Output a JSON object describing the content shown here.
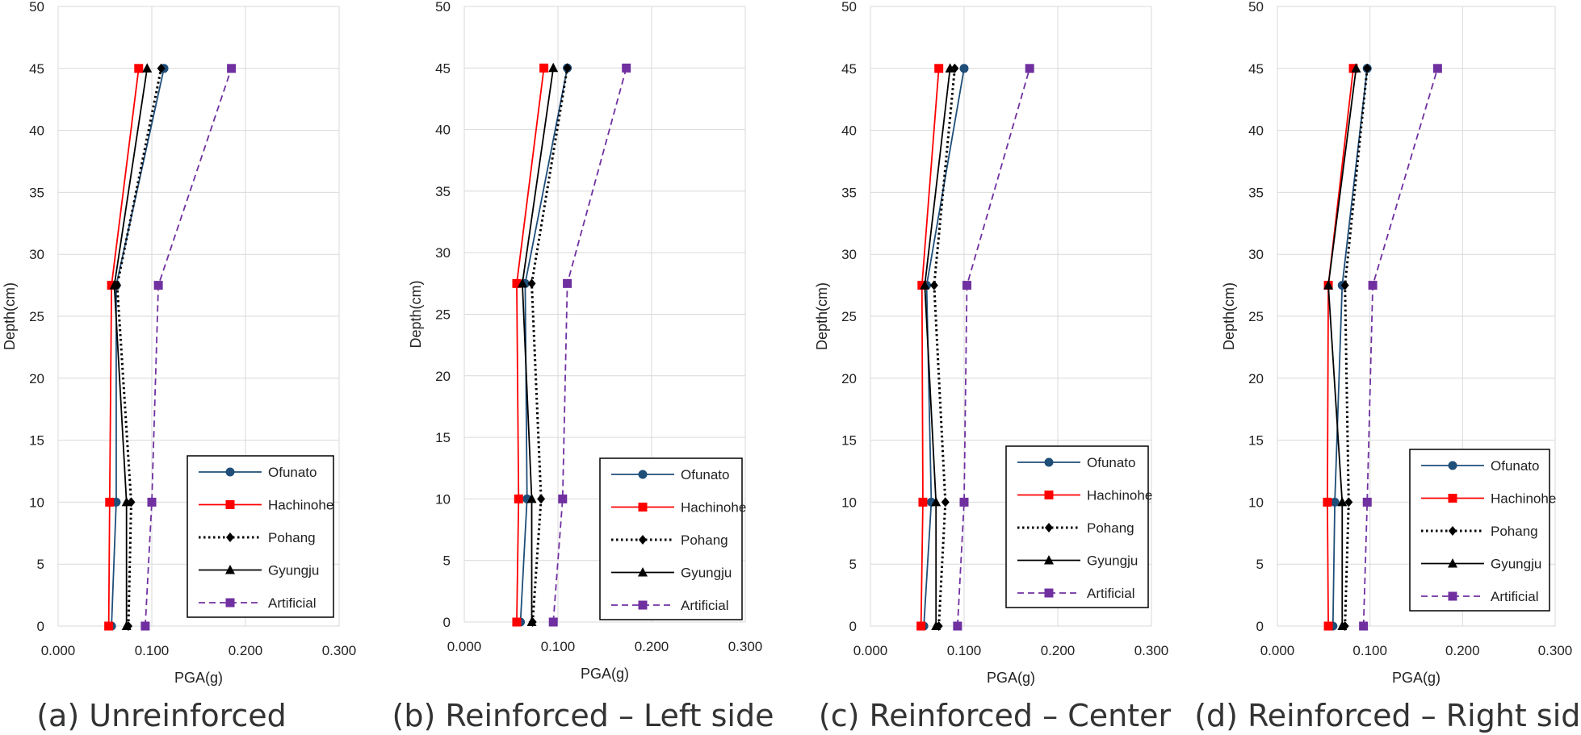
{
  "chart_data": [
    {
      "type": "line",
      "caption": "(a) Unreinforced",
      "xlabel": "PGA(g)",
      "ylabel": "Depth(cm)",
      "xlim": [
        0,
        0.3
      ],
      "ylim": [
        0,
        50
      ],
      "xticks": [
        "0.000",
        "0.100",
        "0.200",
        "0.300"
      ],
      "yticks": [
        "0",
        "5",
        "10",
        "15",
        "20",
        "25",
        "30",
        "35",
        "40",
        "45",
        "50"
      ],
      "legend_position": "bottom-right",
      "series": [
        {
          "name": "Ofunato",
          "depth": [
            0,
            10,
            27.5,
            45
          ],
          "pga": [
            0.057,
            0.062,
            0.062,
            0.113
          ],
          "color": "#1f4e79",
          "marker": "circle",
          "dash": "solid"
        },
        {
          "name": "Hachinohe",
          "depth": [
            0,
            10,
            27.5,
            45
          ],
          "pga": [
            0.054,
            0.055,
            0.057,
            0.086
          ],
          "color": "#ff0000",
          "marker": "square",
          "dash": "solid"
        },
        {
          "name": "Pohang",
          "depth": [
            0,
            10,
            27.5,
            45
          ],
          "pga": [
            0.075,
            0.078,
            0.063,
            0.11
          ],
          "color": "#000000",
          "marker": "diamond",
          "dash": "dotted"
        },
        {
          "name": "Gyungju",
          "depth": [
            0,
            10,
            27.5,
            45
          ],
          "pga": [
            0.073,
            0.073,
            0.06,
            0.095
          ],
          "color": "#000000",
          "marker": "triangle",
          "dash": "solid"
        },
        {
          "name": "Artificial",
          "depth": [
            0,
            10,
            27.5,
            45
          ],
          "pga": [
            0.093,
            0.1,
            0.107,
            0.185
          ],
          "color": "#7030a0",
          "marker": "square",
          "dash": "dashed"
        }
      ]
    },
    {
      "type": "line",
      "caption": "(b) Reinforced – Left side",
      "xlabel": "PGA(g)",
      "ylabel": "Depth(cm)",
      "xlim": [
        0,
        0.3
      ],
      "ylim": [
        0,
        50
      ],
      "xticks": [
        "0.000",
        "0.100",
        "0.200",
        "0.300"
      ],
      "yticks": [
        "0",
        "5",
        "10",
        "15",
        "20",
        "25",
        "30",
        "35",
        "40",
        "45",
        "50"
      ],
      "legend_position": "bottom-right",
      "series": [
        {
          "name": "Ofunato",
          "depth": [
            0,
            10,
            27.5,
            45
          ],
          "pga": [
            0.06,
            0.067,
            0.065,
            0.11
          ],
          "color": "#1f4e79",
          "marker": "circle",
          "dash": "solid"
        },
        {
          "name": "Hachinohe",
          "depth": [
            0,
            10,
            27.5,
            45
          ],
          "pga": [
            0.056,
            0.058,
            0.056,
            0.085
          ],
          "color": "#ff0000",
          "marker": "square",
          "dash": "solid"
        },
        {
          "name": "Pohang",
          "depth": [
            0,
            10,
            27.5,
            45
          ],
          "pga": [
            0.073,
            0.082,
            0.072,
            0.11
          ],
          "color": "#000000",
          "marker": "diamond",
          "dash": "dotted"
        },
        {
          "name": "Gyungju",
          "depth": [
            0,
            10,
            27.5,
            45
          ],
          "pga": [
            0.072,
            0.072,
            0.062,
            0.095
          ],
          "color": "#000000",
          "marker": "triangle",
          "dash": "solid"
        },
        {
          "name": "Artificial",
          "depth": [
            0,
            10,
            27.5,
            45
          ],
          "pga": [
            0.095,
            0.105,
            0.11,
            0.173
          ],
          "color": "#7030a0",
          "marker": "square",
          "dash": "dashed"
        }
      ]
    },
    {
      "type": "line",
      "caption": "(c) Reinforced – Center",
      "xlabel": "PGA(g)",
      "ylabel": "Depth(cm)",
      "xlim": [
        0,
        0.3
      ],
      "ylim": [
        0,
        50
      ],
      "xticks": [
        "0.000",
        "0.100",
        "0.200",
        "0.300"
      ],
      "yticks": [
        "0",
        "5",
        "10",
        "15",
        "20",
        "25",
        "30",
        "35",
        "40",
        "45",
        "50"
      ],
      "legend_position": "bottom-right",
      "series": [
        {
          "name": "Ofunato",
          "depth": [
            0,
            10,
            27.5,
            45
          ],
          "pga": [
            0.057,
            0.065,
            0.06,
            0.1
          ],
          "color": "#1f4e79",
          "marker": "circle",
          "dash": "solid"
        },
        {
          "name": "Hachinohe",
          "depth": [
            0,
            10,
            27.5,
            45
          ],
          "pga": [
            0.054,
            0.056,
            0.055,
            0.073
          ],
          "color": "#ff0000",
          "marker": "square",
          "dash": "solid"
        },
        {
          "name": "Pohang",
          "depth": [
            0,
            10,
            27.5,
            45
          ],
          "pga": [
            0.073,
            0.08,
            0.068,
            0.09
          ],
          "color": "#000000",
          "marker": "diamond",
          "dash": "dotted"
        },
        {
          "name": "Gyungju",
          "depth": [
            0,
            10,
            27.5,
            45
          ],
          "pga": [
            0.07,
            0.07,
            0.058,
            0.085
          ],
          "color": "#000000",
          "marker": "triangle",
          "dash": "solid"
        },
        {
          "name": "Artificial",
          "depth": [
            0,
            10,
            27.5,
            45
          ],
          "pga": [
            0.093,
            0.1,
            0.103,
            0.17
          ],
          "color": "#7030a0",
          "marker": "square",
          "dash": "dashed"
        }
      ]
    },
    {
      "type": "line",
      "caption": "(d) Reinforced – Right side",
      "xlabel": "PGA(g)",
      "ylabel": "Depth(cm)",
      "xlim": [
        0,
        0.3
      ],
      "ylim": [
        0,
        50
      ],
      "xticks": [
        "0.000",
        "0.100",
        "0.200",
        "0.300"
      ],
      "yticks": [
        "0",
        "5",
        "10",
        "15",
        "20",
        "25",
        "30",
        "35",
        "40",
        "45",
        "50"
      ],
      "legend_position": "bottom-right",
      "series": [
        {
          "name": "Ofunato",
          "depth": [
            0,
            10,
            27.5,
            45
          ],
          "pga": [
            0.06,
            0.062,
            0.07,
            0.097
          ],
          "color": "#1f4e79",
          "marker": "circle",
          "dash": "solid"
        },
        {
          "name": "Hachinohe",
          "depth": [
            0,
            10,
            27.5,
            45
          ],
          "pga": [
            0.055,
            0.054,
            0.055,
            0.082
          ],
          "color": "#ff0000",
          "marker": "square",
          "dash": "solid"
        },
        {
          "name": "Pohang",
          "depth": [
            0,
            10,
            27.5,
            45
          ],
          "pga": [
            0.073,
            0.077,
            0.073,
            0.097
          ],
          "color": "#000000",
          "marker": "diamond",
          "dash": "dotted"
        },
        {
          "name": "Gyungju",
          "depth": [
            0,
            10,
            27.5,
            45
          ],
          "pga": [
            0.07,
            0.07,
            0.055,
            0.085
          ],
          "color": "#000000",
          "marker": "triangle",
          "dash": "solid"
        },
        {
          "name": "Artificial",
          "depth": [
            0,
            10,
            27.5,
            45
          ],
          "pga": [
            0.093,
            0.097,
            0.103,
            0.173
          ],
          "color": "#7030a0",
          "marker": "square",
          "dash": "dashed"
        }
      ]
    }
  ]
}
